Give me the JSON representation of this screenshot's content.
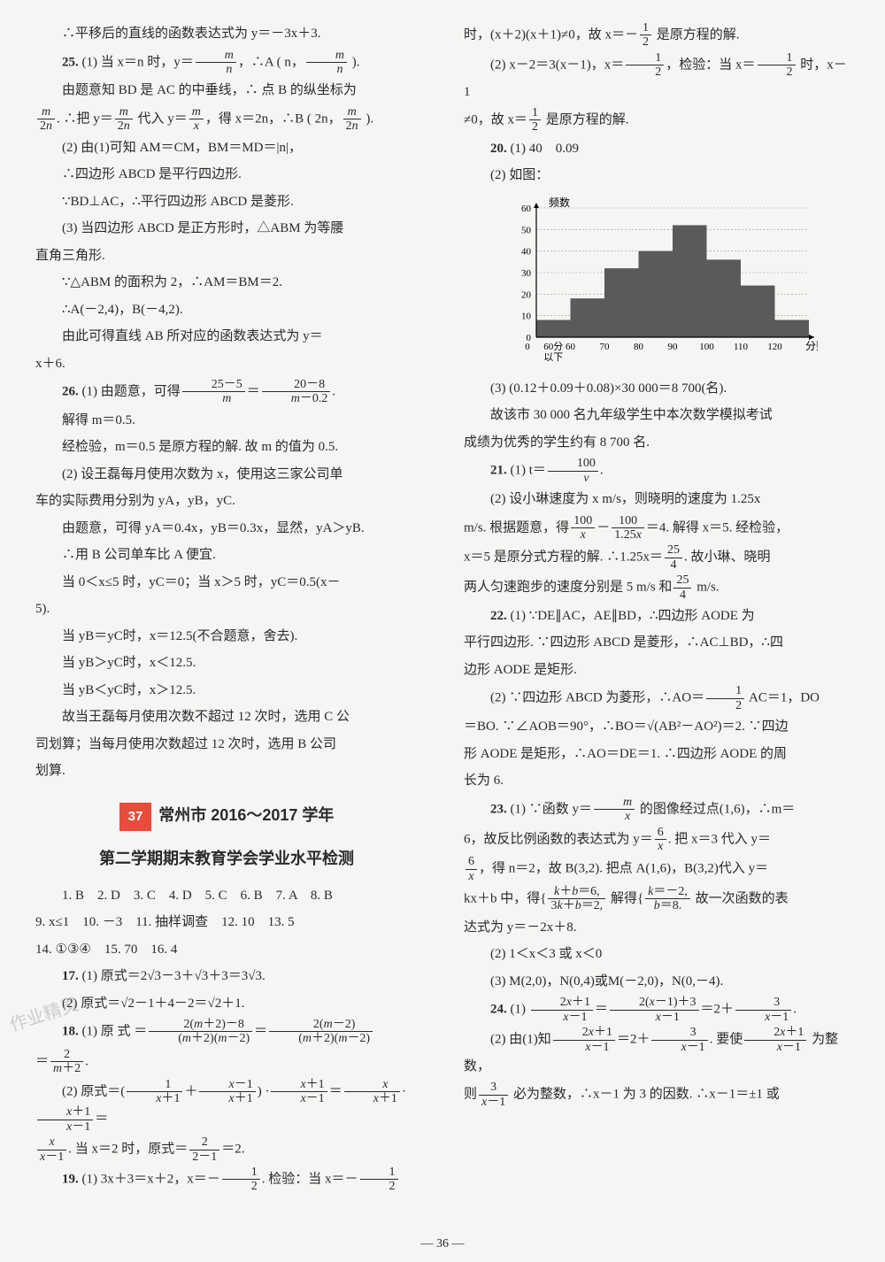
{
  "left": {
    "p1": "∴平移后的直线的函数表达式为 y＝－3x＋3.",
    "p2_label": "25.",
    "p2": "(1) 当 x＝n 时，y＝",
    "p2b": "，∴A ( n，",
    "p2c": " ).",
    "p3": "由题意知 BD 是 AC 的中垂线，∴ 点 B 的纵坐标为",
    "p4a": ". ∴把 y＝",
    "p4b": " 代入 y＝",
    "p4c": "，得 x＝2n，∴B ( 2n，",
    "p4d": " ).",
    "p5": "(2) 由(1)可知 AM＝CM，BM＝MD＝|n|，",
    "p6": "∴四边形 ABCD 是平行四边形.",
    "p7": "∵BD⊥AC，∴平行四边形 ABCD 是菱形.",
    "p8": "(3) 当四边形 ABCD 是正方形时，△ABM 为等腰",
    "p9": "直角三角形.",
    "p10": "∵△ABM 的面积为 2，∴AM＝BM＝2.",
    "p11": "∴A(－2,4)，B(－4,2).",
    "p12": "由此可得直线 AB 所对应的函数表达式为 y＝",
    "p13": "x＋6.",
    "p14_label": "26.",
    "p14a": "(1) 由题意，可得",
    "p14b": "＝",
    "p14c": ".",
    "p15": "解得 m＝0.5.",
    "p16": "经检验，m＝0.5 是原方程的解. 故 m 的值为 0.5.",
    "p17": "(2) 设王磊每月使用次数为 x，使用这三家公司单",
    "p18": "车的实际费用分别为 yA，yB，yC.",
    "p19": "由题意，可得 yA＝0.4x，yB＝0.3x，显然，yA＞yB.",
    "p20": "∴用 B 公司单车比 A 便宜.",
    "p21": "当 0＜x≤5 时，yC＝0；当 x＞5 时，yC＝0.5(x－",
    "p22": "5).",
    "p23": "当 yB＝yC时，x＝12.5(不合题意，舍去).",
    "p24": "当 yB＞yC时，x＜12.5.",
    "p25": "当 yB＜yC时，x＞12.5.",
    "p26": "故当王磊每月使用次数不超过 12 次时，选用 C 公",
    "p27": "司划算；当每月使用次数超过 12 次时，选用 B 公司",
    "p28": "划算.",
    "title_num": "37",
    "title_text": "常州市 2016～2017 学年",
    "subtitle": "第二学期期末教育学会学业水平检测",
    "ans1": "1. B　2. D　3. C　4. D　5. C　6. B　7. A　8. B",
    "ans2": "9. x≤1　10. －3　11. 抽样调查　12. 10　13. 5",
    "ans3": "14. ①③④　15. 70　16. 4",
    "p29_label": "17.",
    "p29": "(1) 原式＝2√3－3＋√3＋3＝3√3.",
    "p30": "(2) 原式＝√2－1＋4－2＝√2＋1.",
    "p31_label": "18.",
    "p31a": "(1) 原 式 ＝",
    "p31b": "＝",
    "p32a": "＝",
    "p32b": ".",
    "p33a": "(2) 原式＝(",
    "p33b": "＋",
    "p33c": ") ·",
    "p33d": "＝",
    "p33e": "·",
    "p33f": "＝",
    "p34a": ". 当 x＝2 时，原式＝",
    "p34b": "＝2.",
    "p35_label": "19.",
    "p35a": "(1) 3x＋3＝x＋2，x＝－",
    "p35b": ". 检验：当 x＝－",
    "watermark": "作业精灵"
  },
  "right": {
    "p1a": "时，(x＋2)(x＋1)≠0，故 x＝－",
    "p1b": " 是原方程的解.",
    "p2a": "(2) x－2＝3(x－1)，x＝",
    "p2b": "，检验：当 x＝",
    "p2c": " 时，x－1",
    "p3a": "≠0，故 x＝",
    "p3b": " 是原方程的解.",
    "p4_label": "20.",
    "p4": "(1) 40　0.09",
    "p5": "(2) 如图：",
    "chart": {
      "type": "bar",
      "ylabel": "频数",
      "xlabel": "分数",
      "categories": [
        "60分以下",
        "60",
        "70",
        "80",
        "90",
        "100",
        "110",
        "120"
      ],
      "values": [
        8,
        18,
        32,
        40,
        52,
        36,
        24,
        8
      ],
      "ymax": 60,
      "ytick_step": 10,
      "bar_color": "#5a5a5a",
      "axis_color": "#000000",
      "grid_color": "#999999"
    },
    "p6": "(3) (0.12＋0.09＋0.08)×30 000＝8 700(名).",
    "p7": "故该市 30 000 名九年级学生中本次数学模拟考试",
    "p8": "成绩为优秀的学生约有 8 700 名.",
    "p9_label": "21.",
    "p9a": "(1) t＝",
    "p9b": ".",
    "p10": "(2) 设小琳速度为 x m/s，则晓明的速度为 1.25x",
    "p11a": "m/s. 根据题意，得",
    "p11b": "－",
    "p11c": "＝4. 解得 x＝5. 经检验，",
    "p12a": "x＝5 是原分式方程的解. ∴1.25x＝",
    "p12b": ". 故小琳、晓明",
    "p13a": "两人匀速跑步的速度分别是 5 m/s 和",
    "p13b": " m/s.",
    "p14_label": "22.",
    "p14": "(1) ∵DE∥AC，AE∥BD，∴四边形 AODE 为",
    "p15": "平行四边形. ∵四边形 ABCD 是菱形，∴AC⊥BD，∴四",
    "p16": "边形 AODE 是矩形.",
    "p17a": "(2) ∵四边形 ABCD 为菱形，∴AO＝",
    "p17b": " AC＝1，DO",
    "p18": "＝BO. ∵∠AOB＝90°，∴BO＝√(AB²－AO²)＝2. ∵四边",
    "p19": "形 AODE 是矩形，∴AO＝DE＝1. ∴四边形 AODE 的周",
    "p20": "长为 6.",
    "p21_label": "23.",
    "p21a": "(1) ∵函数 y＝",
    "p21b": " 的图像经过点(1,6)，∴m＝",
    "p22a": "6，故反比例函数的表达式为 y＝",
    "p22b": ". 把 x＝3 代入 y＝",
    "p23a": "，得 n＝2，故 B(3,2). 把点 A(1,6)，B(3,2)代入 y＝",
    "p24a": "kx＋b 中，得",
    "p24b": " 解得",
    "p24c": " 故一次函数的表",
    "p25": "达式为 y＝－2x＋8.",
    "p26": "(2) 1＜x＜3 或 x＜0",
    "p27": "(3) M(2,0)，N(0,4)或M(－2,0)，N(0,－4).",
    "p28_label": "24.",
    "p28a": "(1) ",
    "p28b": "＝",
    "p28c": "＝2＋",
    "p28d": ".",
    "p29a": "(2) 由(1)知",
    "p29b": "＝2＋",
    "p29c": ". 要使",
    "p29d": " 为整数，",
    "p30a": "则",
    "p30b": " 必为整数，∴x－1 为 3 的因数. ∴x－1＝±1 或"
  },
  "pagenum": "— 36 —"
}
